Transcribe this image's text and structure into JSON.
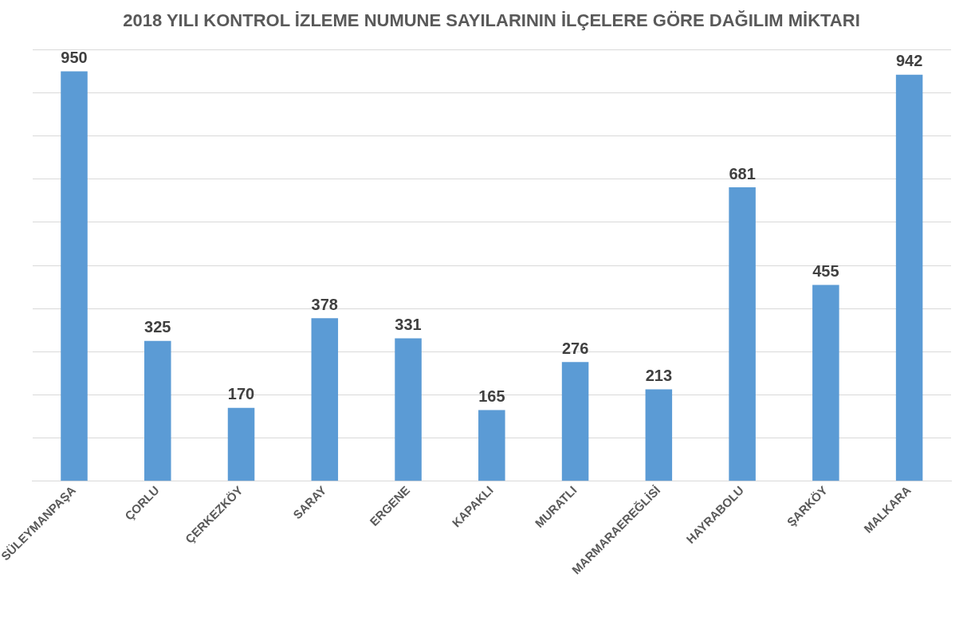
{
  "chart_data": {
    "type": "bar",
    "title": "2018 YILI KONTROL İZLEME NUMUNE SAYILARININ İLÇELERE GÖRE DAĞILIM MİKTARI",
    "categories": [
      "SÜLEYMANPAŞA",
      "ÇORLU",
      "ÇERKEZKÖY",
      "SARAY",
      "ERGENE",
      "KAPAKLI",
      "MURATLI",
      "MARMARAEREĞLİSİ",
      "HAYRABOLU",
      "ŞARKÖY",
      "MALKARA"
    ],
    "values": [
      950,
      325,
      170,
      378,
      331,
      165,
      276,
      213,
      681,
      455,
      942
    ],
    "color": "#5b9bd5",
    "ylim": [
      0,
      1000
    ],
    "yticks": [
      {
        "value": 0,
        "label": null
      },
      {
        "value": 100,
        "label": null
      },
      {
        "value": 200,
        "label": null
      },
      {
        "value": 300,
        "label": null
      },
      {
        "value": 400,
        "label": null
      },
      {
        "value": 500,
        "label": null
      },
      {
        "value": 600,
        "label": null
      },
      {
        "value": 700,
        "label": null
      },
      {
        "value": 800,
        "label": null
      },
      {
        "value": 900,
        "label": null
      },
      {
        "value": 1000,
        "label": null
      }
    ],
    "grid": "y",
    "data_labels": true,
    "tick_labels": "x"
  }
}
